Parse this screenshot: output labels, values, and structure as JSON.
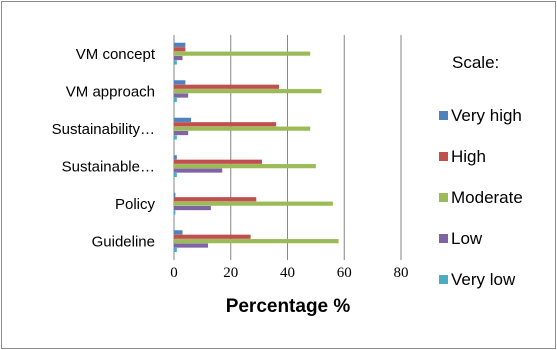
{
  "chart_data": {
    "type": "bar",
    "orientation": "horizontal",
    "categories": [
      "VM concept",
      "VM approach",
      "Sustainability…",
      "Sustainable…",
      "Policy",
      "Guideline"
    ],
    "series": [
      {
        "name": "Very high",
        "color": "#4F81BD",
        "values": [
          4,
          4,
          6,
          1,
          0.5,
          3
        ]
      },
      {
        "name": "High",
        "color": "#C0504D",
        "values": [
          4,
          37,
          36,
          31,
          29,
          27
        ]
      },
      {
        "name": "Moderate",
        "color": "#9BBB59",
        "values": [
          48,
          52,
          48,
          50,
          56,
          58
        ]
      },
      {
        "name": "Low",
        "color": "#8064A2",
        "values": [
          3,
          5,
          5,
          17,
          13,
          12
        ]
      },
      {
        "name": "Very low",
        "color": "#4BACC6",
        "values": [
          1,
          1,
          1,
          1,
          0.5,
          1
        ]
      }
    ],
    "xlabel": "Percentage %",
    "xlim": [
      0,
      80
    ],
    "xticks": [
      0,
      20,
      40,
      60,
      80
    ],
    "legend_title": "Scale:",
    "legend_position": "right",
    "grid": "vertical"
  }
}
